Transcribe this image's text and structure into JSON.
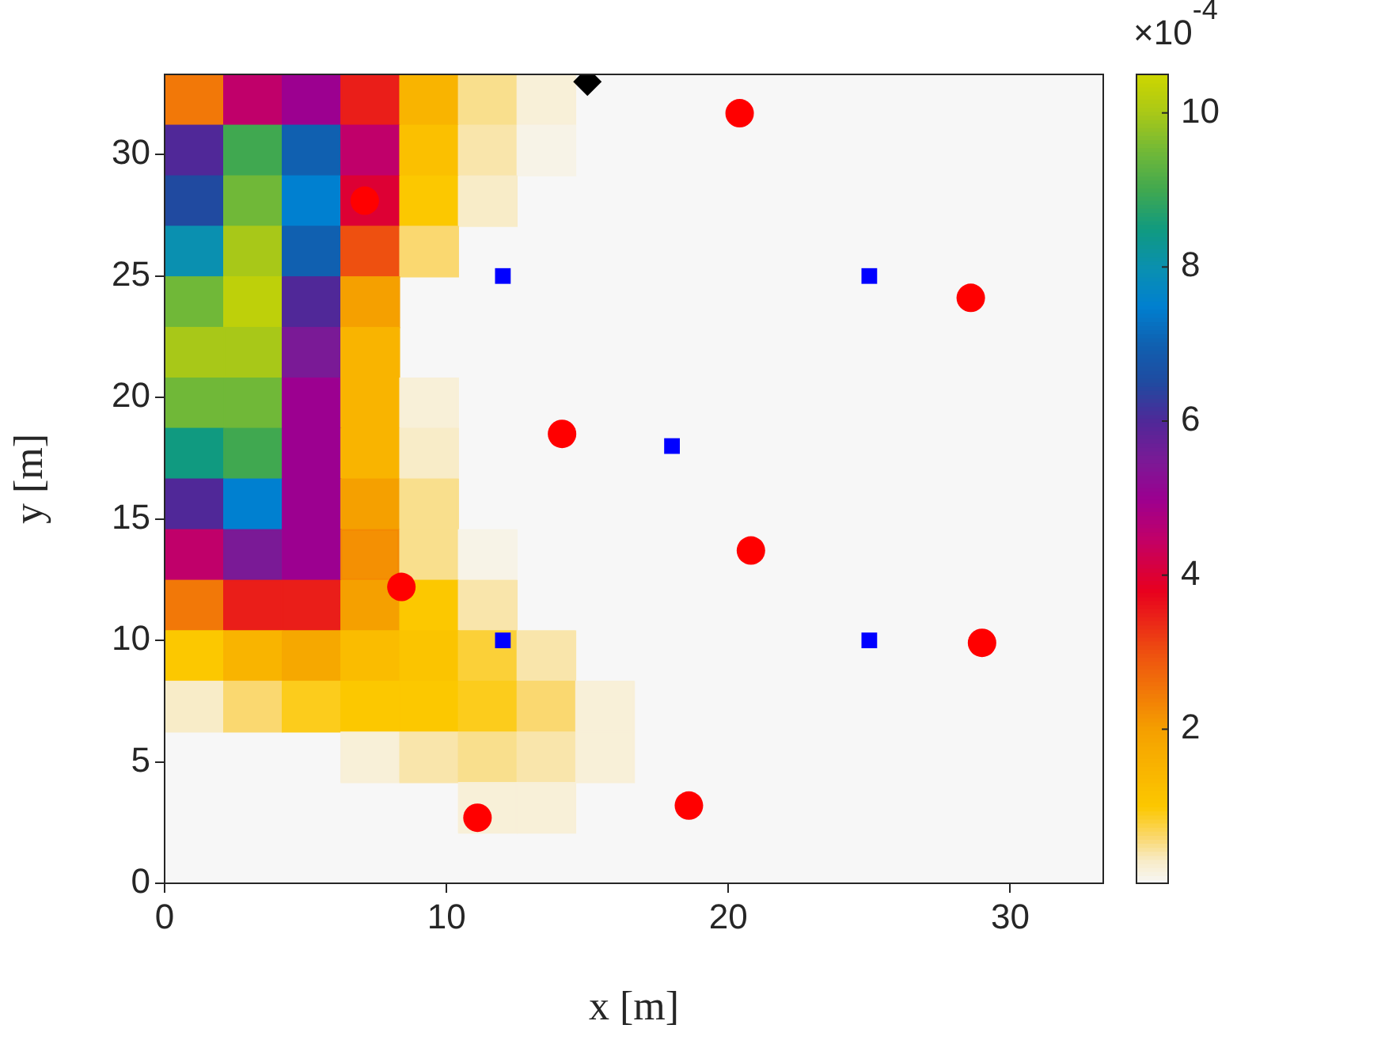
{
  "chart_data": {
    "type": "scatter",
    "xlabel": "x [m]",
    "ylabel": "y [m]",
    "clabel": "×10$^{-4}$",
    "xlim": [
      0,
      33.3
    ],
    "ylim": [
      0,
      33.3
    ],
    "xticks": [
      0,
      10,
      20,
      30
    ],
    "yticks": [
      0,
      5,
      10,
      15,
      20,
      25,
      30
    ],
    "clim": [
      0,
      10.5
    ],
    "cticks": [
      2,
      4,
      6,
      8,
      10
    ],
    "series": [
      {
        "type": "scatter",
        "marker": "square",
        "colors": [
          "#f27808",
          "#c0006a",
          "#9c0090",
          "#ea1e19",
          "#f9b400",
          "#f9df8d",
          "#f8efd8",
          "#502898",
          "#40a850",
          "#1060b0",
          "#c0006a",
          "#fbc000",
          "#f9e5ab",
          "#f7f3e7",
          "#204aa0",
          "#70b838",
          "#0080d0",
          "#dd0034",
          "#fcc800",
          "#f8ecc8",
          "#0a90b0",
          "#a8c818",
          "#1060b0",
          "#ee5010",
          "#fad870",
          "#70b838",
          "#bed00a",
          "#502898",
          "#f5a000",
          "#a8c818",
          "#a8c818",
          "#7a1a96",
          "#f9b400",
          "#70b838",
          "#70b838",
          "#9c0090",
          "#f9b400",
          "#f8efd8",
          "#109a80",
          "#40a850",
          "#9c0090",
          "#f9b400",
          "#f8ecc8",
          "#502898",
          "#0080d0",
          "#9c0090",
          "#f5a000",
          "#f9df8d",
          "#c0006a",
          "#7a1a96",
          "#9c0090",
          "#f48803",
          "#f9df8d",
          "#f7f3e7",
          "#f27808",
          "#ea1e19",
          "#ea1e19",
          "#f5a000",
          "#fcc800",
          "#f9e5ab",
          "#fcc800",
          "#f9b400",
          "#f6a800",
          "#fabc00",
          "#fbc400",
          "#fbd038",
          "#f9e5ab",
          "#f8ecc8",
          "#fad870",
          "#fccc1c",
          "#fcc800",
          "#fcc800",
          "#fccc1c",
          "#fad870",
          "#f8efd8",
          "#f8efd8",
          "#f9e5ab",
          "#f9df8d",
          "#f9e5ab",
          "#f8efd8",
          "#f8efd8",
          "#f8efd8"
        ],
        "x": [
          1.04,
          3.12,
          5.2,
          7.28,
          9.37,
          11.45,
          13.53,
          1.04,
          3.12,
          5.2,
          7.28,
          9.37,
          11.45,
          13.53,
          1.04,
          3.12,
          5.2,
          7.28,
          9.37,
          11.45,
          1.04,
          3.12,
          5.2,
          7.28,
          9.37,
          1.04,
          3.12,
          5.2,
          7.28,
          1.04,
          3.12,
          5.2,
          7.28,
          1.04,
          3.12,
          5.2,
          7.28,
          9.37,
          1.04,
          3.12,
          5.2,
          7.28,
          9.37,
          1.04,
          3.12,
          5.2,
          7.28,
          9.37,
          1.04,
          3.12,
          5.2,
          7.28,
          9.37,
          11.45,
          1.04,
          3.12,
          5.2,
          7.28,
          9.37,
          11.45,
          1.04,
          3.12,
          5.2,
          7.28,
          9.37,
          11.45,
          13.53,
          1.04,
          3.12,
          5.2,
          7.28,
          9.37,
          11.45,
          13.53,
          15.61,
          7.28,
          9.37,
          11.45,
          13.53,
          15.61,
          11.45,
          13.53
        ],
        "values": [
          32.26,
          32.26,
          32.26,
          32.26,
          32.26,
          32.26,
          32.26,
          30.18,
          30.18,
          30.18,
          30.18,
          30.18,
          30.18,
          30.18,
          28.1,
          28.1,
          28.1,
          28.1,
          28.1,
          28.1,
          26.02,
          26.02,
          26.02,
          26.02,
          26.02,
          23.94,
          23.94,
          23.94,
          23.94,
          21.86,
          21.86,
          21.86,
          21.86,
          19.78,
          19.78,
          19.78,
          19.78,
          19.78,
          17.7,
          17.7,
          17.7,
          17.7,
          17.7,
          15.62,
          15.62,
          15.62,
          15.62,
          15.62,
          13.53,
          13.53,
          13.53,
          13.53,
          13.53,
          13.53,
          11.45,
          11.45,
          11.45,
          11.45,
          11.45,
          11.45,
          9.37,
          9.37,
          9.37,
          9.37,
          9.37,
          9.37,
          9.37,
          7.29,
          7.29,
          7.29,
          7.29,
          7.29,
          7.29,
          7.29,
          7.29,
          5.2,
          5.2,
          5.2,
          5.2,
          5.2,
          3.12,
          3.12
        ],
        "cvalues": [
          2.5,
          4.5,
          5,
          3.5,
          1.5,
          0.5,
          0.2,
          6,
          9,
          7,
          4.5,
          1.2,
          0.4,
          0.1,
          6.5,
          9.5,
          7.5,
          4,
          1,
          0.3,
          8,
          10,
          7,
          3,
          0.6,
          9.5,
          10.3,
          6,
          2,
          10,
          10,
          5.5,
          1.5,
          9.5,
          9.5,
          5,
          1.5,
          0.2,
          8.5,
          9,
          5,
          1.5,
          0.3,
          6,
          7.5,
          5,
          2,
          0.5,
          4.5,
          5.5,
          5,
          2.2,
          0.5,
          0.1,
          2.5,
          3.5,
          3.5,
          2,
          1,
          0.4,
          1,
          1.5,
          1.8,
          1.3,
          1.1,
          0.8,
          0.4,
          0.3,
          0.6,
          0.9,
          1,
          1,
          0.9,
          0.6,
          0.2,
          0.2,
          0.4,
          0.5,
          0.4,
          0.2,
          0.2,
          0.2
        ]
      },
      {
        "type": "scatter",
        "color": "#ff0000",
        "marker": "circle",
        "x": [
          20.4,
          7.1,
          28.6,
          14.1,
          20.8,
          8.4,
          29.0,
          11.1,
          18.6
        ],
        "values": [
          31.7,
          28.1,
          24.1,
          18.5,
          13.7,
          12.2,
          9.9,
          2.7,
          3.2
        ]
      },
      {
        "type": "scatter",
        "color": "#0000ff",
        "marker": "square",
        "x": [
          12,
          25,
          18,
          12,
          25
        ],
        "values": [
          25,
          25,
          18,
          10,
          10
        ]
      },
      {
        "type": "scatter",
        "color": "#000000",
        "marker": "diamond",
        "x": [
          15
        ],
        "values": [
          33
        ]
      }
    ]
  }
}
